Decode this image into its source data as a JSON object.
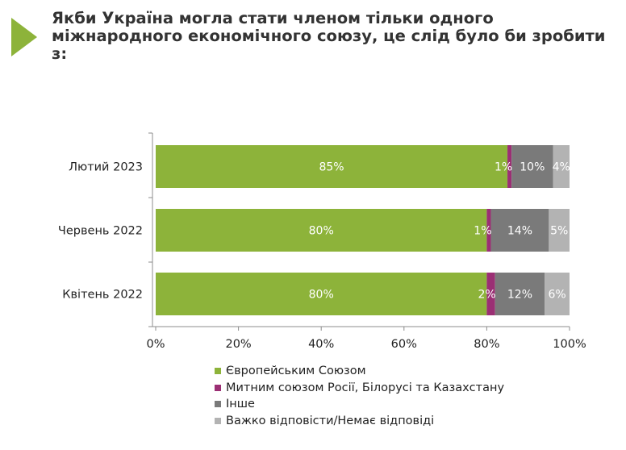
{
  "header": {
    "title": "Якби Україна могла стати членом тільки одного міжнародного економічного союзу, це слід було би зробити з:",
    "accent_color": "#8db33a"
  },
  "chart_data": {
    "type": "bar",
    "orientation": "horizontal",
    "stacked": true,
    "categories": [
      "Лютий 2023",
      "Червень 2022",
      "Квітень 2022"
    ],
    "series": [
      {
        "name": "Європейським Союзом",
        "color": "#8db33a",
        "values": [
          85,
          80,
          80
        ]
      },
      {
        "name": "Митним союзом Росії, Білорусі та Казахстану",
        "color": "#9b2f74",
        "values": [
          1,
          1,
          2
        ]
      },
      {
        "name": "Інше",
        "color": "#7a7a7a",
        "values": [
          10,
          14,
          12
        ]
      },
      {
        "name": "Важко відповісти/Немає відповіді",
        "color": "#b3b3b3",
        "values": [
          4,
          5,
          6
        ]
      }
    ],
    "data_labels": [
      [
        "85%",
        "1%",
        "10%",
        "4%"
      ],
      [
        "80%",
        "1%",
        "14%",
        "5%"
      ],
      [
        "80%",
        "2%",
        "12%",
        "6%"
      ]
    ],
    "xlim": [
      0,
      100
    ],
    "x_ticks": [
      "0%",
      "20%",
      "40%",
      "60%",
      "80%",
      "100%"
    ],
    "grid": false,
    "legend_position": "bottom"
  }
}
